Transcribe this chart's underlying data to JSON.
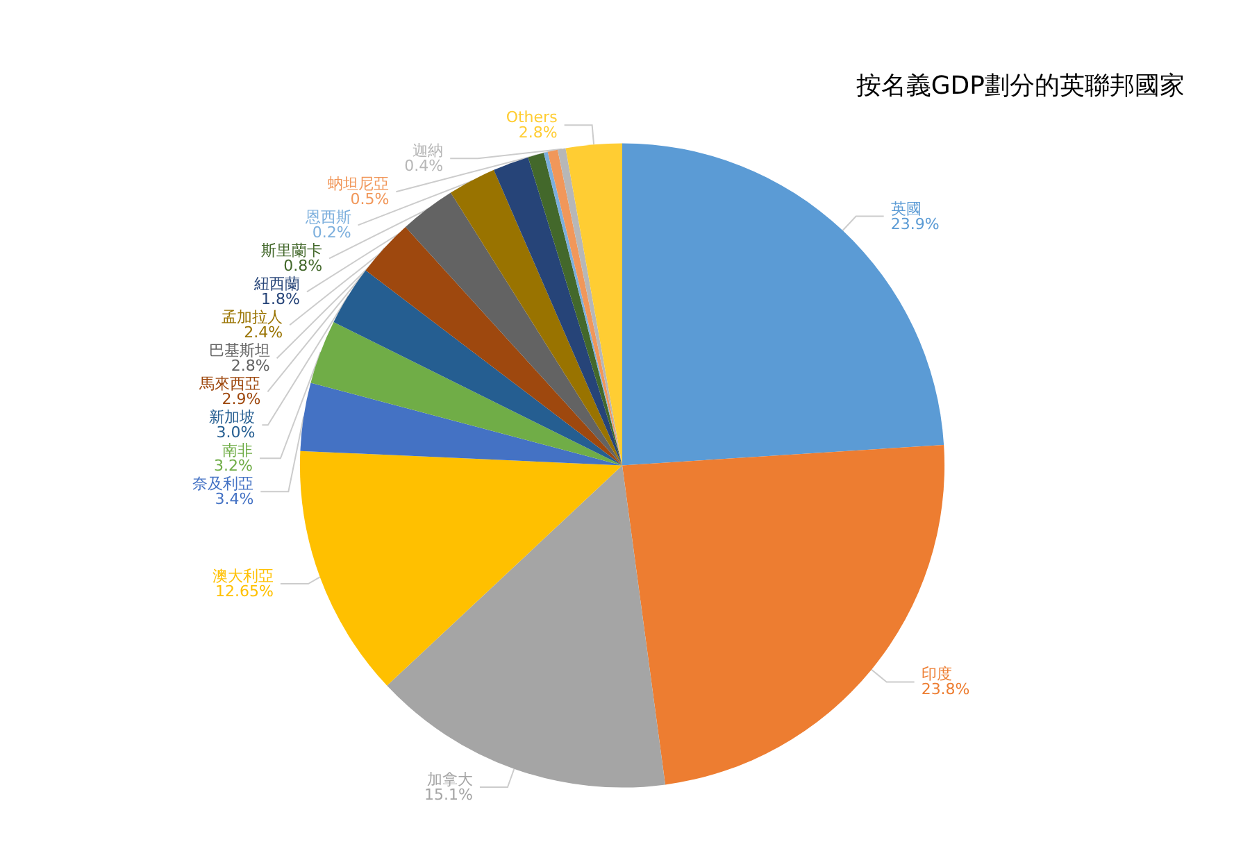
{
  "chart_data": {
    "type": "pie",
    "title": "按名義GDP劃分的英聯邦國家",
    "categories": [
      "英國",
      "印度",
      "加拿大",
      "澳大利亞",
      "奈及利亞",
      "南非",
      "新加坡",
      "馬來西亞",
      "巴基斯坦",
      "孟加拉人",
      "紐西蘭",
      "斯里蘭卡",
      "恩西斯",
      "蚋坦尼亞",
      "迦納",
      "Others"
    ],
    "values": [
      23.9,
      23.8,
      15.1,
      12.65,
      3.4,
      3.2,
      3.0,
      2.9,
      2.8,
      2.4,
      1.8,
      0.8,
      0.2,
      0.5,
      0.4,
      2.8
    ],
    "value_labels": [
      "23.9%",
      "23.8%",
      "15.1%",
      "12.65%",
      "3.4%",
      "3.2%",
      "3.0%",
      "2.9%",
      "2.8%",
      "2.4%",
      "1.8%",
      "0.8%",
      "0.2%",
      "0.5%",
      "0.4%",
      "2.8%"
    ],
    "colors": [
      "#5b9bd5",
      "#ed7d31",
      "#a5a5a5",
      "#ffc000",
      "#4472c4",
      "#70ad47",
      "#255e91",
      "#9e480e",
      "#636363",
      "#997300",
      "#264478",
      "#43682b",
      "#7cafdd",
      "#f1975a",
      "#b7b7b7",
      "#ffcd33"
    ]
  }
}
